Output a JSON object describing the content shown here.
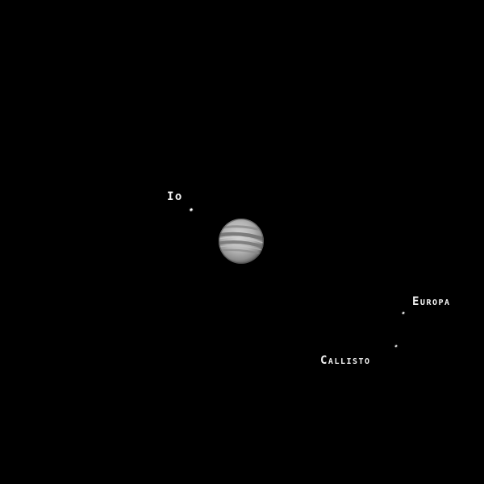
{
  "moons": {
    "io": {
      "label": "Io"
    },
    "europa": {
      "label": "Europa"
    },
    "callisto": {
      "label": "Callisto"
    }
  },
  "colors": {
    "background": "#000000",
    "label": "#f2f2f2",
    "planet_light": "#d9d9d9",
    "planet_dark": "#6f6f6f"
  },
  "objects": [
    "jupiter-planet",
    "io-moon",
    "europa-moon",
    "callisto-moon"
  ]
}
